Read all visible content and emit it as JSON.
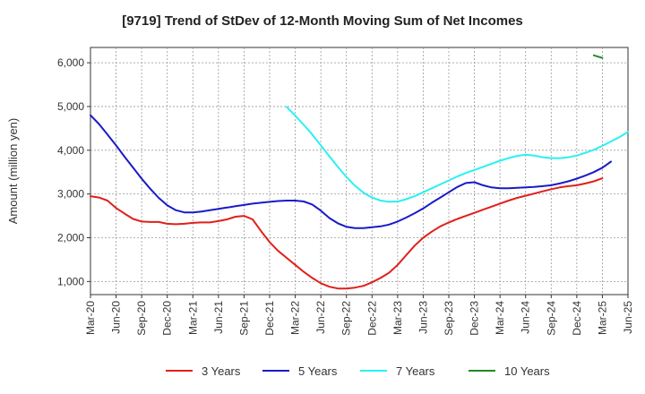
{
  "chart_data": {
    "type": "line",
    "title": "[9719]  Trend of StDev of 12-Month Moving Sum of Net Incomes",
    "ylabel": "Amount (million yen)",
    "xlabel": "",
    "ylim": [
      700,
      6350
    ],
    "y_ticks": [
      1000,
      2000,
      3000,
      4000,
      5000,
      6000
    ],
    "y_tick_labels": [
      "1,000",
      "2,000",
      "3,000",
      "4,000",
      "5,000",
      "6,000"
    ],
    "x_ticks": [
      "Mar-20",
      "Jun-20",
      "Sep-20",
      "Dec-20",
      "Mar-21",
      "Jun-21",
      "Sep-21",
      "Dec-21",
      "Mar-22",
      "Jun-22",
      "Sep-22",
      "Dec-22",
      "Mar-23",
      "Jun-23",
      "Sep-23",
      "Dec-23",
      "Mar-24",
      "Jun-24",
      "Sep-24",
      "Dec-24",
      "Mar-25",
      "Jun-25"
    ],
    "grid": true,
    "legend_position": "bottom",
    "series": [
      {
        "name": "3 Years",
        "color": "#e0201b",
        "start": "Mar-20",
        "values": [
          2950,
          2920,
          2850,
          2680,
          2550,
          2430,
          2370,
          2360,
          2360,
          2320,
          2310,
          2320,
          2340,
          2350,
          2350,
          2380,
          2420,
          2480,
          2500,
          2420,
          2150,
          1900,
          1700,
          1540,
          1380,
          1220,
          1080,
          960,
          880,
          840,
          840,
          860,
          900,
          980,
          1080,
          1200,
          1380,
          1600,
          1820,
          2000,
          2140,
          2260,
          2350,
          2430,
          2500,
          2570,
          2640,
          2710,
          2780,
          2850,
          2910,
          2960,
          3010,
          3060,
          3110,
          3150,
          3180,
          3200,
          3240,
          3290,
          3360
        ]
      },
      {
        "name": "5 Years",
        "color": "#1a1ac8",
        "start": "Mar-20",
        "values": [
          4800,
          4600,
          4360,
          4110,
          3850,
          3600,
          3350,
          3120,
          2910,
          2740,
          2630,
          2580,
          2580,
          2600,
          2630,
          2660,
          2690,
          2720,
          2750,
          2780,
          2800,
          2820,
          2840,
          2850,
          2850,
          2830,
          2760,
          2620,
          2450,
          2330,
          2250,
          2220,
          2220,
          2240,
          2260,
          2300,
          2370,
          2460,
          2560,
          2670,
          2800,
          2920,
          3040,
          3160,
          3250,
          3270,
          3200,
          3150,
          3130,
          3130,
          3140,
          3150,
          3160,
          3180,
          3200,
          3240,
          3290,
          3350,
          3420,
          3500,
          3600,
          3740
        ]
      },
      {
        "name": "7 Years",
        "color": "#2cf0f0",
        "start": "Feb-22",
        "values": [
          4990,
          4790,
          4580,
          4360,
          4110,
          3860,
          3620,
          3390,
          3190,
          3030,
          2920,
          2850,
          2820,
          2830,
          2880,
          2950,
          3040,
          3130,
          3220,
          3310,
          3400,
          3480,
          3550,
          3620,
          3690,
          3760,
          3820,
          3870,
          3900,
          3880,
          3840,
          3820,
          3820,
          3840,
          3880,
          3940,
          4010,
          4100,
          4200,
          4300,
          4420
        ]
      },
      {
        "name": "10 Years",
        "color": "#228b22",
        "start": "Feb-25",
        "values": [
          6170,
          6110
        ]
      }
    ]
  }
}
